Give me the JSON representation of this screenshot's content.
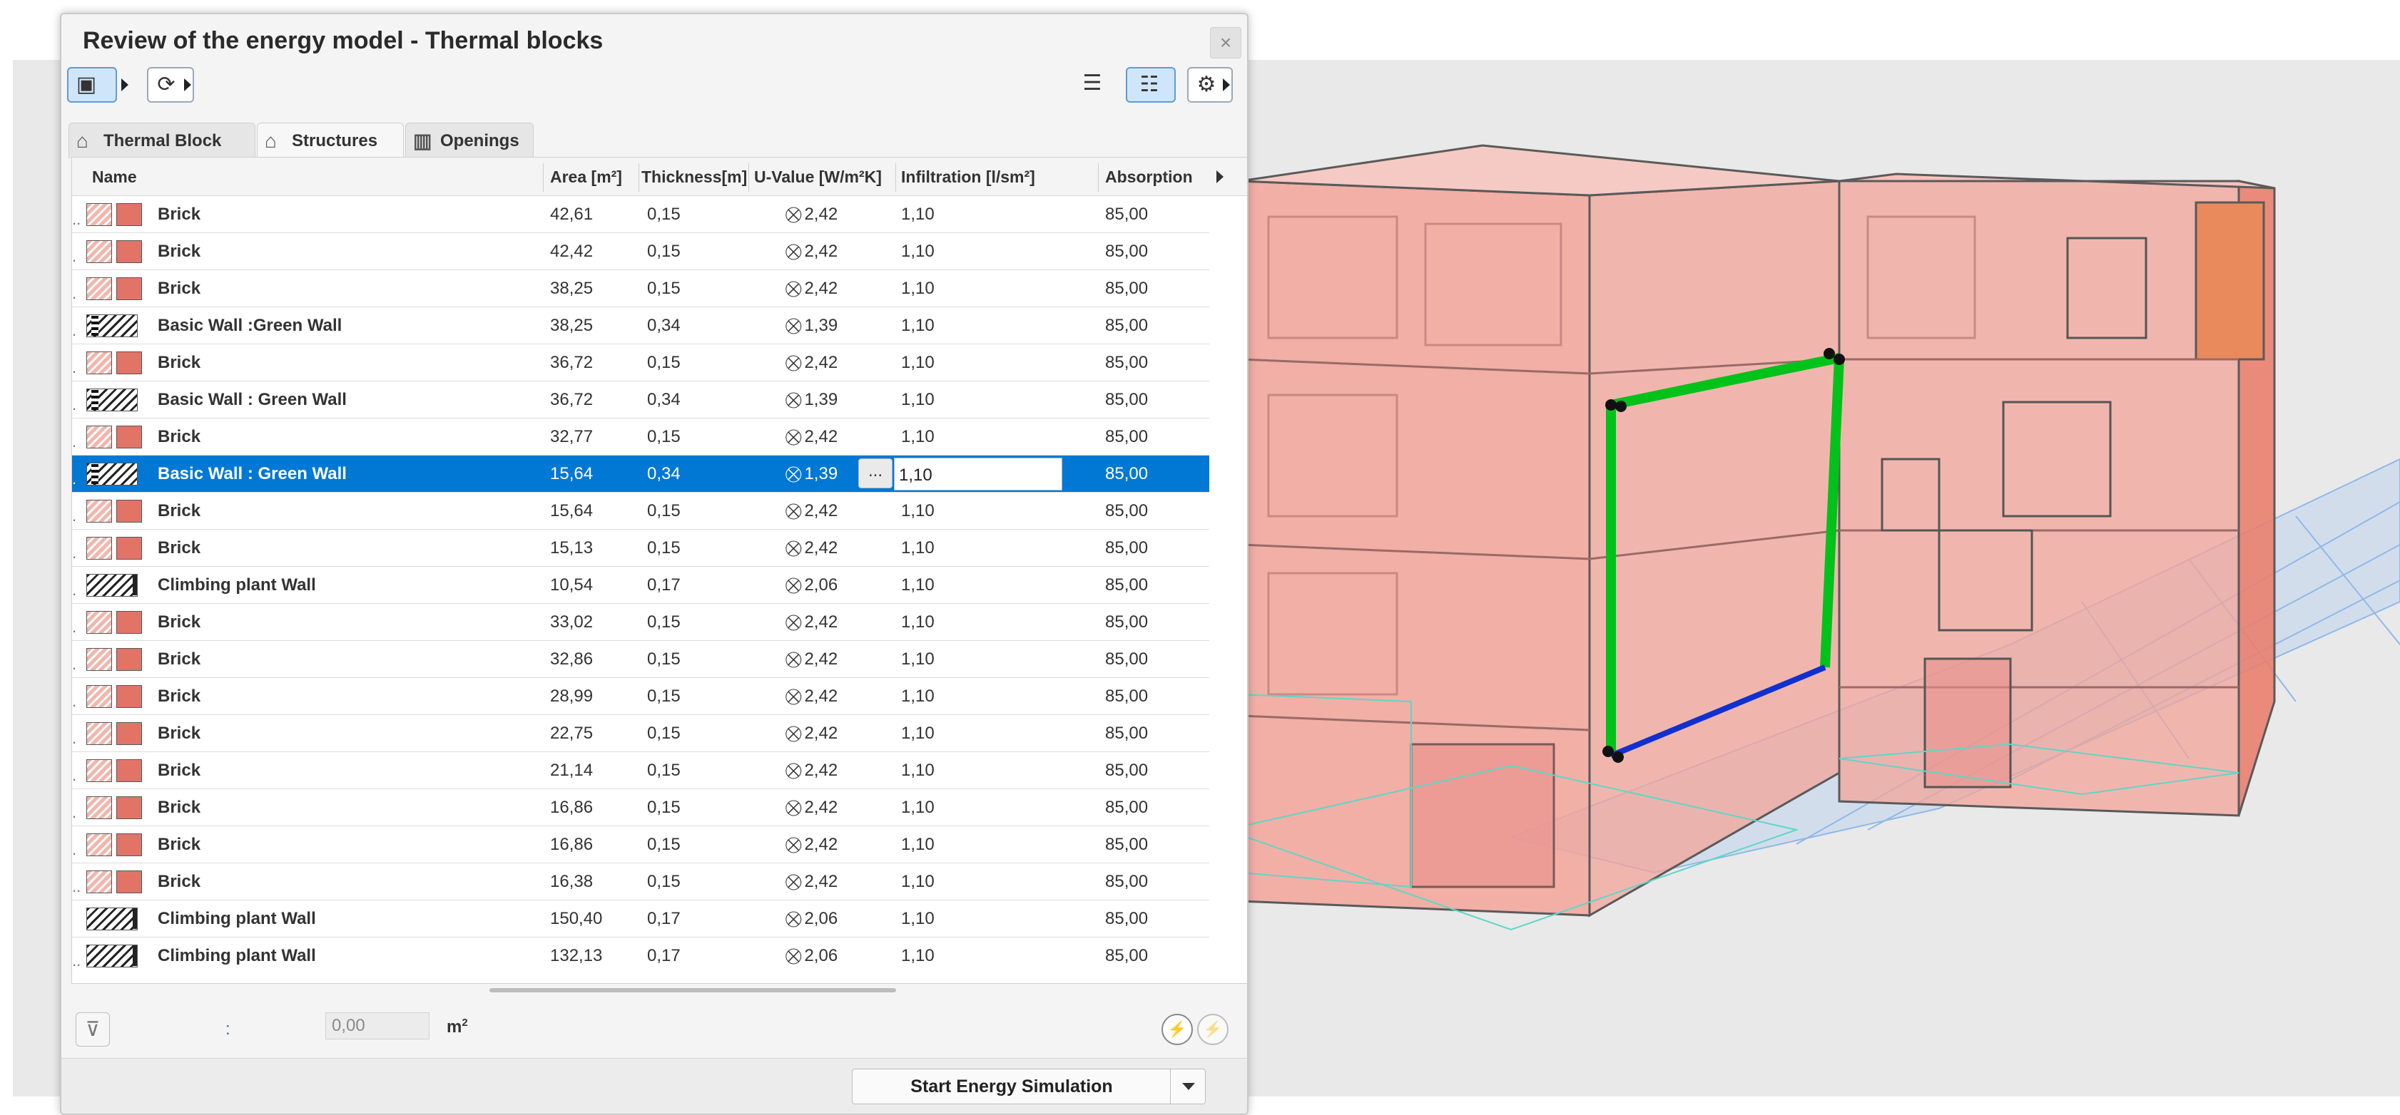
{
  "window": {
    "title": "Review of the energy model - Thermal blocks",
    "close_icon": "×"
  },
  "toolbar": {
    "left_buttons": [
      "thermal-block-view-icon",
      "refresh-icon"
    ],
    "right_buttons": [
      "list-tree-icon",
      "list-detail-icon",
      "gear-icon"
    ]
  },
  "tabs": [
    {
      "label": "Thermal Block",
      "icon": "thermal-block-icon",
      "active": false
    },
    {
      "label": "Structures",
      "icon": "house-icon",
      "active": true
    },
    {
      "label": "Openings",
      "icon": "openings-icon",
      "active": false
    }
  ],
  "columns": {
    "name": "Name",
    "area": "Area [m²]",
    "thickness": "Thickness[m]",
    "uvalue": "U-Value  [W/m²K]",
    "infiltration": "Infiltration   [l/sm²]",
    "absorption": "Absorption"
  },
  "rows": [
    {
      "marker": "..",
      "swatch": "brick",
      "name": "Brick",
      "area": "42,61",
      "thickness": "0,15",
      "uvalue": "2,42",
      "infiltration": "1,10",
      "absorption": "85,00"
    },
    {
      "marker": ".",
      "swatch": "brick",
      "name": "Brick",
      "area": "42,42",
      "thickness": "0,15",
      "uvalue": "2,42",
      "infiltration": "1,10",
      "absorption": "85,00"
    },
    {
      "marker": ".",
      "swatch": "brick",
      "name": "Brick",
      "area": "38,25",
      "thickness": "0,15",
      "uvalue": "2,42",
      "infiltration": "1,10",
      "absorption": "85,00"
    },
    {
      "marker": ".",
      "swatch": "green",
      "name": "Basic Wall :Green Wall",
      "area": "38,25",
      "thickness": "0,34",
      "uvalue": "1,39",
      "infiltration": "1,10",
      "absorption": "85,00"
    },
    {
      "marker": ".",
      "swatch": "brick",
      "name": "Brick",
      "area": "36,72",
      "thickness": "0,15",
      "uvalue": "2,42",
      "infiltration": "1,10",
      "absorption": "85,00"
    },
    {
      "marker": ".",
      "swatch": "green",
      "name": "Basic Wall : Green Wall",
      "area": "36,72",
      "thickness": "0,34",
      "uvalue": "1,39",
      "infiltration": "1,10",
      "absorption": "85,00"
    },
    {
      "marker": ".",
      "swatch": "brick",
      "name": "Brick",
      "area": "32,77",
      "thickness": "0,15",
      "uvalue": "2,42",
      "infiltration": "1,10",
      "absorption": "85,00"
    },
    {
      "marker": ".",
      "swatch": "green",
      "name": "Basic Wall : Green Wall",
      "area": "15,64",
      "thickness": "0,34",
      "uvalue": "1,39",
      "infiltration": "1,10",
      "absorption": "85,00",
      "selected": true
    },
    {
      "marker": ".",
      "swatch": "brick",
      "name": "Brick",
      "area": "15,64",
      "thickness": "0,15",
      "uvalue": "2,42",
      "infiltration": "1,10",
      "absorption": "85,00"
    },
    {
      "marker": ".",
      "swatch": "brick",
      "name": "Brick",
      "area": "15,13",
      "thickness": "0,15",
      "uvalue": "2,42",
      "infiltration": "1,10",
      "absorption": "85,00"
    },
    {
      "marker": ".",
      "swatch": "climb",
      "name": "Climbing plant Wall",
      "area": "10,54",
      "thickness": "0,17",
      "uvalue": "2,06",
      "infiltration": "1,10",
      "absorption": "85,00"
    },
    {
      "marker": ".",
      "swatch": "brick",
      "name": "Brick",
      "area": "33,02",
      "thickness": "0,15",
      "uvalue": "2,42",
      "infiltration": "1,10",
      "absorption": "85,00"
    },
    {
      "marker": ".",
      "swatch": "brick",
      "name": "Brick",
      "area": "32,86",
      "thickness": "0,15",
      "uvalue": "2,42",
      "infiltration": "1,10",
      "absorption": "85,00"
    },
    {
      "marker": ".",
      "swatch": "brick",
      "name": "Brick",
      "area": "28,99",
      "thickness": "0,15",
      "uvalue": "2,42",
      "infiltration": "1,10",
      "absorption": "85,00"
    },
    {
      "marker": ".",
      "swatch": "brick",
      "name": "Brick",
      "area": "22,75",
      "thickness": "0,15",
      "uvalue": "2,42",
      "infiltration": "1,10",
      "absorption": "85,00"
    },
    {
      "marker": ".",
      "swatch": "brick",
      "name": "Brick",
      "area": "21,14",
      "thickness": "0,15",
      "uvalue": "2,42",
      "infiltration": "1,10",
      "absorption": "85,00"
    },
    {
      "marker": ".",
      "swatch": "brick",
      "name": "Brick",
      "area": "16,86",
      "thickness": "0,15",
      "uvalue": "2,42",
      "infiltration": "1,10",
      "absorption": "85,00"
    },
    {
      "marker": ".",
      "swatch": "brick",
      "name": "Brick",
      "area": "16,86",
      "thickness": "0,15",
      "uvalue": "2,42",
      "infiltration": "1,10",
      "absorption": "85,00"
    },
    {
      "marker": "..",
      "swatch": "brick",
      "name": "Brick",
      "area": "16,38",
      "thickness": "0,15",
      "uvalue": "2,42",
      "infiltration": "1,10",
      "absorption": "85,00"
    },
    {
      "marker": "",
      "swatch": "climb",
      "name": "Climbing plant Wall",
      "area": "150,40",
      "thickness": "0,17",
      "uvalue": "2,06",
      "infiltration": "1,10",
      "absorption": "85,00"
    },
    {
      "marker": "..",
      "swatch": "climb",
      "name": "Climbing plant Wall",
      "area": "132,13",
      "thickness": "0,17",
      "uvalue": "2,06",
      "infiltration": "1,10",
      "absorption": "85,00"
    }
  ],
  "selected_row_edit": {
    "button": "...",
    "infiltration_value": "1,10"
  },
  "summary": {
    "colon": ":",
    "value": "0,00",
    "unit": "m",
    "unit_sup": "2"
  },
  "actions": {
    "start_simulation": "Start Energy Simulation"
  },
  "colors": {
    "selection": "#0078d4",
    "brick_fill": "#e27467",
    "highlight_edge": "#00c21a",
    "highlight_bottom": "#1030d0"
  }
}
